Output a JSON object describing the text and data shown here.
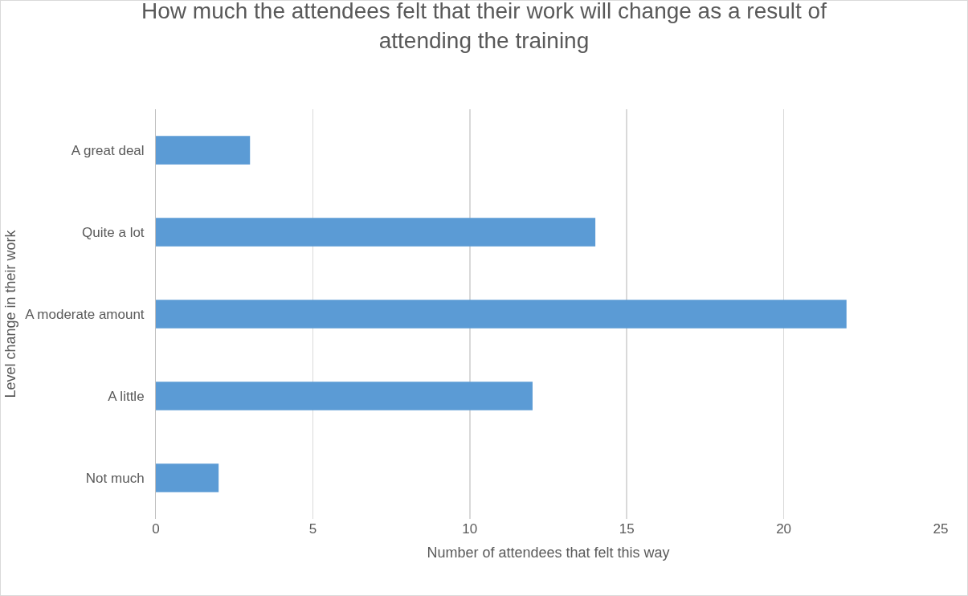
{
  "chart_data": {
    "type": "bar",
    "orientation": "horizontal",
    "title": "How much the attendees felt that their work will change as a result of attending the training",
    "xlabel": "Number of attendees that felt this way",
    "ylabel": "Level change in their work",
    "categories": [
      "A great deal",
      "Quite a lot",
      "A moderate amount",
      "A little",
      "Not much"
    ],
    "values": [
      3,
      14,
      22,
      12,
      2
    ],
    "color": "#5b9bd5",
    "xlim": [
      0,
      25
    ],
    "xticks": [
      0,
      5,
      10,
      15,
      20,
      25
    ],
    "grid": "x",
    "legend": false
  }
}
